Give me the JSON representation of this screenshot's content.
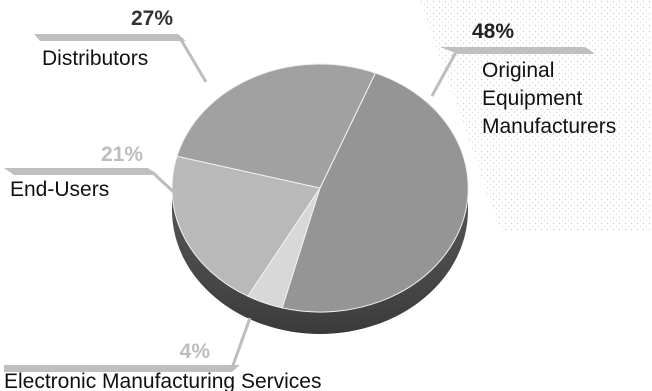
{
  "chart_data": {
    "type": "pie",
    "style": "3d-tilted",
    "legend": "none",
    "slices": [
      {
        "label": "Original Equipment Manufacturers",
        "label_lines": [
          "Original",
          "Equipment",
          "Manufacturers"
        ],
        "value": 48,
        "pct_text": "48%",
        "color": "#959595"
      },
      {
        "label": "Electronic Manufacturing Services",
        "label_lines": [
          "Electronic Manufacturing Services"
        ],
        "value": 4,
        "pct_text": "4%",
        "color": "#d8d8d8"
      },
      {
        "label": "End-Users",
        "label_lines": [
          "End-Users"
        ],
        "value": 21,
        "pct_text": "21%",
        "color": "#b9b9b9"
      },
      {
        "label": "Distributors",
        "label_lines": [
          "Distributors"
        ],
        "value": 27,
        "pct_text": "27%",
        "color": "#a1a1a1"
      }
    ]
  }
}
